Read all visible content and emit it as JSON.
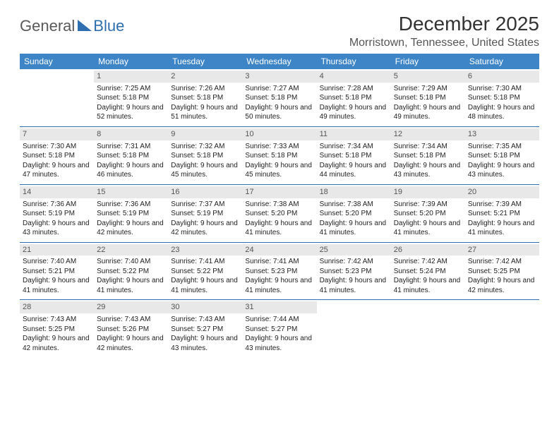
{
  "logo": {
    "part1": "General",
    "part2": "Blue"
  },
  "title": "December 2025",
  "location": "Morristown, Tennessee, United States",
  "day_headers": [
    "Sunday",
    "Monday",
    "Tuesday",
    "Wednesday",
    "Thursday",
    "Friday",
    "Saturday"
  ],
  "colors": {
    "header_bg": "#3d85c6",
    "header_fg": "#ffffff",
    "rule": "#2f6fb0",
    "daynum_bg": "#e8e8e8",
    "logo_blue": "#2f6fb0"
  },
  "weeks": [
    [
      null,
      {
        "n": "1",
        "sr": "Sunrise: 7:25 AM",
        "ss": "Sunset: 5:18 PM",
        "dl": "Daylight: 9 hours and 52 minutes."
      },
      {
        "n": "2",
        "sr": "Sunrise: 7:26 AM",
        "ss": "Sunset: 5:18 PM",
        "dl": "Daylight: 9 hours and 51 minutes."
      },
      {
        "n": "3",
        "sr": "Sunrise: 7:27 AM",
        "ss": "Sunset: 5:18 PM",
        "dl": "Daylight: 9 hours and 50 minutes."
      },
      {
        "n": "4",
        "sr": "Sunrise: 7:28 AM",
        "ss": "Sunset: 5:18 PM",
        "dl": "Daylight: 9 hours and 49 minutes."
      },
      {
        "n": "5",
        "sr": "Sunrise: 7:29 AM",
        "ss": "Sunset: 5:18 PM",
        "dl": "Daylight: 9 hours and 49 minutes."
      },
      {
        "n": "6",
        "sr": "Sunrise: 7:30 AM",
        "ss": "Sunset: 5:18 PM",
        "dl": "Daylight: 9 hours and 48 minutes."
      }
    ],
    [
      {
        "n": "7",
        "sr": "Sunrise: 7:30 AM",
        "ss": "Sunset: 5:18 PM",
        "dl": "Daylight: 9 hours and 47 minutes."
      },
      {
        "n": "8",
        "sr": "Sunrise: 7:31 AM",
        "ss": "Sunset: 5:18 PM",
        "dl": "Daylight: 9 hours and 46 minutes."
      },
      {
        "n": "9",
        "sr": "Sunrise: 7:32 AM",
        "ss": "Sunset: 5:18 PM",
        "dl": "Daylight: 9 hours and 45 minutes."
      },
      {
        "n": "10",
        "sr": "Sunrise: 7:33 AM",
        "ss": "Sunset: 5:18 PM",
        "dl": "Daylight: 9 hours and 45 minutes."
      },
      {
        "n": "11",
        "sr": "Sunrise: 7:34 AM",
        "ss": "Sunset: 5:18 PM",
        "dl": "Daylight: 9 hours and 44 minutes."
      },
      {
        "n": "12",
        "sr": "Sunrise: 7:34 AM",
        "ss": "Sunset: 5:18 PM",
        "dl": "Daylight: 9 hours and 43 minutes."
      },
      {
        "n": "13",
        "sr": "Sunrise: 7:35 AM",
        "ss": "Sunset: 5:18 PM",
        "dl": "Daylight: 9 hours and 43 minutes."
      }
    ],
    [
      {
        "n": "14",
        "sr": "Sunrise: 7:36 AM",
        "ss": "Sunset: 5:19 PM",
        "dl": "Daylight: 9 hours and 43 minutes."
      },
      {
        "n": "15",
        "sr": "Sunrise: 7:36 AM",
        "ss": "Sunset: 5:19 PM",
        "dl": "Daylight: 9 hours and 42 minutes."
      },
      {
        "n": "16",
        "sr": "Sunrise: 7:37 AM",
        "ss": "Sunset: 5:19 PM",
        "dl": "Daylight: 9 hours and 42 minutes."
      },
      {
        "n": "17",
        "sr": "Sunrise: 7:38 AM",
        "ss": "Sunset: 5:20 PM",
        "dl": "Daylight: 9 hours and 41 minutes."
      },
      {
        "n": "18",
        "sr": "Sunrise: 7:38 AM",
        "ss": "Sunset: 5:20 PM",
        "dl": "Daylight: 9 hours and 41 minutes."
      },
      {
        "n": "19",
        "sr": "Sunrise: 7:39 AM",
        "ss": "Sunset: 5:20 PM",
        "dl": "Daylight: 9 hours and 41 minutes."
      },
      {
        "n": "20",
        "sr": "Sunrise: 7:39 AM",
        "ss": "Sunset: 5:21 PM",
        "dl": "Daylight: 9 hours and 41 minutes."
      }
    ],
    [
      {
        "n": "21",
        "sr": "Sunrise: 7:40 AM",
        "ss": "Sunset: 5:21 PM",
        "dl": "Daylight: 9 hours and 41 minutes."
      },
      {
        "n": "22",
        "sr": "Sunrise: 7:40 AM",
        "ss": "Sunset: 5:22 PM",
        "dl": "Daylight: 9 hours and 41 minutes."
      },
      {
        "n": "23",
        "sr": "Sunrise: 7:41 AM",
        "ss": "Sunset: 5:22 PM",
        "dl": "Daylight: 9 hours and 41 minutes."
      },
      {
        "n": "24",
        "sr": "Sunrise: 7:41 AM",
        "ss": "Sunset: 5:23 PM",
        "dl": "Daylight: 9 hours and 41 minutes."
      },
      {
        "n": "25",
        "sr": "Sunrise: 7:42 AM",
        "ss": "Sunset: 5:23 PM",
        "dl": "Daylight: 9 hours and 41 minutes."
      },
      {
        "n": "26",
        "sr": "Sunrise: 7:42 AM",
        "ss": "Sunset: 5:24 PM",
        "dl": "Daylight: 9 hours and 41 minutes."
      },
      {
        "n": "27",
        "sr": "Sunrise: 7:42 AM",
        "ss": "Sunset: 5:25 PM",
        "dl": "Daylight: 9 hours and 42 minutes."
      }
    ],
    [
      {
        "n": "28",
        "sr": "Sunrise: 7:43 AM",
        "ss": "Sunset: 5:25 PM",
        "dl": "Daylight: 9 hours and 42 minutes."
      },
      {
        "n": "29",
        "sr": "Sunrise: 7:43 AM",
        "ss": "Sunset: 5:26 PM",
        "dl": "Daylight: 9 hours and 42 minutes."
      },
      {
        "n": "30",
        "sr": "Sunrise: 7:43 AM",
        "ss": "Sunset: 5:27 PM",
        "dl": "Daylight: 9 hours and 43 minutes."
      },
      {
        "n": "31",
        "sr": "Sunrise: 7:44 AM",
        "ss": "Sunset: 5:27 PM",
        "dl": "Daylight: 9 hours and 43 minutes."
      },
      null,
      null,
      null
    ]
  ]
}
